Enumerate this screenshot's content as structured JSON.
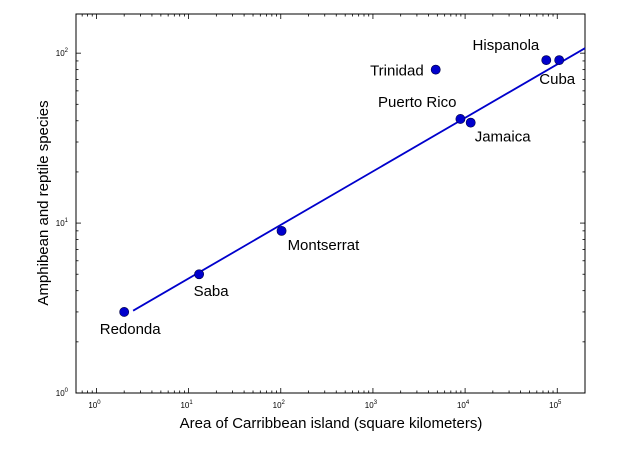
{
  "chart_data": {
    "type": "scatter",
    "xlabel": "Area of Carribbean island (square kilometers)",
    "ylabel": "Amphibean and reptile species",
    "x_scale": "log",
    "y_scale": "log",
    "xlim": [
      0.6,
      200000
    ],
    "ylim": [
      1,
      170
    ],
    "x_ticks": [
      {
        "base": "10",
        "exp": "0",
        "value": 1
      },
      {
        "base": "10",
        "exp": "1",
        "value": 10
      },
      {
        "base": "10",
        "exp": "2",
        "value": 100
      },
      {
        "base": "10",
        "exp": "3",
        "value": 1000
      },
      {
        "base": "10",
        "exp": "4",
        "value": 10000
      },
      {
        "base": "10",
        "exp": "5",
        "value": 100000
      }
    ],
    "y_ticks": [
      {
        "base": "10",
        "exp": "0",
        "value": 1
      },
      {
        "base": "10",
        "exp": "1",
        "value": 10
      },
      {
        "base": "10",
        "exp": "2",
        "value": 100
      }
    ],
    "grid": false,
    "colors": {
      "points": "#0000cc",
      "fit_line": "#0000cc"
    },
    "points": [
      {
        "label": "Redonda",
        "x": 2,
        "y": 3,
        "label_pos": "below"
      },
      {
        "label": "Saba",
        "x": 13,
        "y": 5,
        "label_pos": "below"
      },
      {
        "label": "Montserrat",
        "x": 102,
        "y": 9,
        "label_pos": "below-right"
      },
      {
        "label": "Jamaica",
        "x": 11500,
        "y": 39,
        "label_pos": "below-right"
      },
      {
        "label": "Puerto Rico",
        "x": 8900,
        "y": 41,
        "label_pos": "above-left"
      },
      {
        "label": "Trinidad",
        "x": 4800,
        "y": 80,
        "label_pos": "left"
      },
      {
        "label": "Hispanola",
        "x": 76000,
        "y": 91,
        "label_pos": "above-left"
      },
      {
        "label": "Cuba",
        "x": 105000,
        "y": 91,
        "label_pos": "below"
      }
    ],
    "fit_line": {
      "x": [
        2.5,
        200000
      ],
      "y": [
        3.05,
        107
      ]
    }
  }
}
